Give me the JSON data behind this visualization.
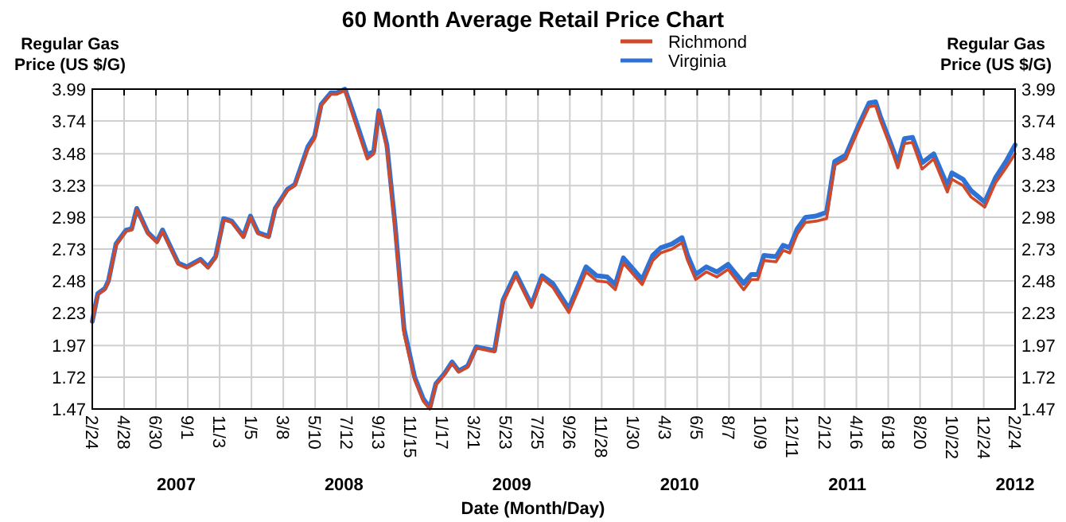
{
  "chart_data": {
    "type": "line",
    "title": "60 Month Average Retail Price Chart",
    "xlabel": "Date (Month/Day)",
    "ylabel": "Regular Gas Price (US $/G)",
    "y2label": "Regular Gas Price (US $/G)",
    "x": [
      "2007-02-24",
      "2007-03-07",
      "2007-03-21",
      "2007-03-28",
      "2007-04-12",
      "2007-05-02",
      "2007-05-13",
      "2007-05-23",
      "2007-06-14",
      "2007-07-02",
      "2007-07-13",
      "2007-08-13",
      "2007-08-30",
      "2007-09-26",
      "2007-10-11",
      "2007-10-26",
      "2007-11-11",
      "2007-11-27",
      "2007-12-20",
      "2008-01-03",
      "2008-01-18",
      "2008-02-08",
      "2008-02-21",
      "2008-03-16",
      "2008-03-31",
      "2008-04-26",
      "2008-05-09",
      "2008-05-22",
      "2008-06-10",
      "2008-06-22",
      "2008-07-08",
      "2008-07-23",
      "2008-08-21",
      "2008-09-03",
      "2008-09-13",
      "2008-09-29",
      "2008-10-15",
      "2008-11-02",
      "2008-11-23",
      "2008-12-10",
      "2008-12-23",
      "2009-01-04",
      "2009-01-21",
      "2009-02-05",
      "2009-02-18",
      "2009-03-08",
      "2009-03-25",
      "2009-04-30",
      "2009-05-17",
      "2009-06-11",
      "2009-07-12",
      "2009-08-02",
      "2009-08-23",
      "2009-09-24",
      "2009-10-28",
      "2009-11-18",
      "2009-12-09",
      "2009-12-25",
      "2010-01-10",
      "2010-02-16",
      "2010-03-09",
      "2010-03-25",
      "2010-04-16",
      "2010-05-06",
      "2010-05-17",
      "2010-06-02",
      "2010-06-23",
      "2010-07-14",
      "2010-08-05",
      "2010-09-05",
      "2010-09-20",
      "2010-10-03",
      "2010-10-15",
      "2010-11-08",
      "2010-11-22",
      "2010-12-05",
      "2010-12-20",
      "2011-01-05",
      "2011-01-26",
      "2011-02-16",
      "2011-03-04",
      "2011-03-26",
      "2011-04-21",
      "2011-05-11",
      "2011-05-24",
      "2011-06-02",
      "2011-06-24",
      "2011-07-07",
      "2011-07-20",
      "2011-08-05",
      "2011-08-24",
      "2011-09-16",
      "2011-10-13",
      "2011-10-22",
      "2011-11-13",
      "2011-11-29",
      "2011-12-26",
      "2012-01-16",
      "2012-02-06",
      "2012-02-24"
    ],
    "series": [
      {
        "name": "Richmond",
        "color": "#d0492a",
        "values": [
          2.16,
          2.37,
          2.41,
          2.47,
          2.76,
          2.87,
          2.88,
          3.04,
          2.85,
          2.78,
          2.87,
          2.61,
          2.58,
          2.64,
          2.58,
          2.66,
          2.96,
          2.94,
          2.82,
          2.98,
          2.85,
          2.82,
          3.04,
          3.19,
          3.23,
          3.52,
          3.6,
          3.86,
          3.95,
          3.95,
          3.98,
          3.79,
          3.44,
          3.48,
          3.81,
          3.52,
          2.89,
          2.06,
          1.7,
          1.53,
          1.47,
          1.66,
          1.74,
          1.83,
          1.76,
          1.8,
          1.95,
          1.92,
          2.31,
          2.52,
          2.27,
          2.5,
          2.43,
          2.23,
          2.55,
          2.48,
          2.47,
          2.41,
          2.62,
          2.45,
          2.64,
          2.7,
          2.73,
          2.78,
          2.64,
          2.49,
          2.55,
          2.51,
          2.57,
          2.41,
          2.49,
          2.49,
          2.64,
          2.63,
          2.72,
          2.7,
          2.85,
          2.94,
          2.95,
          2.97,
          3.39,
          3.44,
          3.68,
          3.85,
          3.86,
          3.75,
          3.52,
          3.37,
          3.56,
          3.57,
          3.36,
          3.44,
          3.18,
          3.28,
          3.23,
          3.14,
          3.06,
          3.25,
          3.37,
          3.48
        ]
      },
      {
        "name": "Virginia",
        "color": "#2f72d6",
        "values": [
          2.16,
          2.38,
          2.42,
          2.48,
          2.77,
          2.88,
          2.89,
          3.05,
          2.86,
          2.79,
          2.88,
          2.62,
          2.59,
          2.65,
          2.59,
          2.67,
          2.97,
          2.95,
          2.83,
          2.99,
          2.86,
          2.83,
          3.05,
          3.2,
          3.24,
          3.54,
          3.62,
          3.87,
          3.96,
          3.96,
          3.99,
          3.82,
          3.47,
          3.5,
          3.82,
          3.55,
          2.93,
          2.1,
          1.72,
          1.55,
          1.48,
          1.67,
          1.75,
          1.84,
          1.77,
          1.81,
          1.96,
          1.93,
          2.33,
          2.54,
          2.29,
          2.52,
          2.46,
          2.26,
          2.59,
          2.52,
          2.51,
          2.45,
          2.66,
          2.49,
          2.68,
          2.74,
          2.77,
          2.82,
          2.68,
          2.53,
          2.59,
          2.55,
          2.61,
          2.46,
          2.53,
          2.53,
          2.68,
          2.67,
          2.76,
          2.74,
          2.89,
          2.98,
          2.99,
          3.02,
          3.42,
          3.47,
          3.71,
          3.88,
          3.89,
          3.78,
          3.55,
          3.41,
          3.6,
          3.61,
          3.41,
          3.48,
          3.23,
          3.33,
          3.28,
          3.19,
          3.1,
          3.29,
          3.42,
          3.55
        ]
      }
    ],
    "xlim": [
      "2007-02-24",
      "2012-02-24"
    ],
    "xticks": [
      {
        "value": "2007-02-24",
        "label": "2/24"
      },
      {
        "value": "2007-04-28",
        "label": "4/28"
      },
      {
        "value": "2007-06-30",
        "label": "6/30"
      },
      {
        "value": "2007-09-01",
        "label": "9/1"
      },
      {
        "value": "2007-11-03",
        "label": "11/3"
      },
      {
        "value": "2008-01-05",
        "label": "1/5"
      },
      {
        "value": "2008-03-08",
        "label": "3/8"
      },
      {
        "value": "2008-05-10",
        "label": "5/10"
      },
      {
        "value": "2008-07-12",
        "label": "7/12"
      },
      {
        "value": "2008-09-13",
        "label": "9/13"
      },
      {
        "value": "2008-11-15",
        "label": "11/15"
      },
      {
        "value": "2009-01-17",
        "label": "1/17"
      },
      {
        "value": "2009-03-21",
        "label": "3/21"
      },
      {
        "value": "2009-05-23",
        "label": "5/23"
      },
      {
        "value": "2009-07-25",
        "label": "7/25"
      },
      {
        "value": "2009-09-26",
        "label": "9/26"
      },
      {
        "value": "2009-11-28",
        "label": "11/28"
      },
      {
        "value": "2010-01-30",
        "label": "1/30"
      },
      {
        "value": "2010-04-03",
        "label": "4/3"
      },
      {
        "value": "2010-06-05",
        "label": "6/5"
      },
      {
        "value": "2010-08-07",
        "label": "8/7"
      },
      {
        "value": "2010-10-09",
        "label": "10/9"
      },
      {
        "value": "2010-12-11",
        "label": "12/11"
      },
      {
        "value": "2011-02-12",
        "label": "2/12"
      },
      {
        "value": "2011-04-16",
        "label": "4/16"
      },
      {
        "value": "2011-06-18",
        "label": "6/18"
      },
      {
        "value": "2011-08-20",
        "label": "8/20"
      },
      {
        "value": "2011-10-22",
        "label": "10/22"
      },
      {
        "value": "2011-12-24",
        "label": "12/24"
      },
      {
        "value": "2012-02-24",
        "label": "2/24"
      }
    ],
    "ylim": [
      1.47,
      3.99
    ],
    "yticks": [
      1.47,
      1.72,
      1.97,
      2.23,
      2.48,
      2.73,
      2.98,
      3.23,
      3.48,
      3.74,
      3.99
    ],
    "y2lim": [
      1.47,
      3.99
    ],
    "y2ticks": [
      1.47,
      1.72,
      1.97,
      2.23,
      2.48,
      2.73,
      2.98,
      3.23,
      3.48,
      3.74,
      3.99
    ],
    "annotations": [
      "2007",
      "2008",
      "2009",
      "2010",
      "2011",
      "2012"
    ],
    "grid": true,
    "legend": "top",
    "line_style": "solid",
    "marker": "none"
  }
}
